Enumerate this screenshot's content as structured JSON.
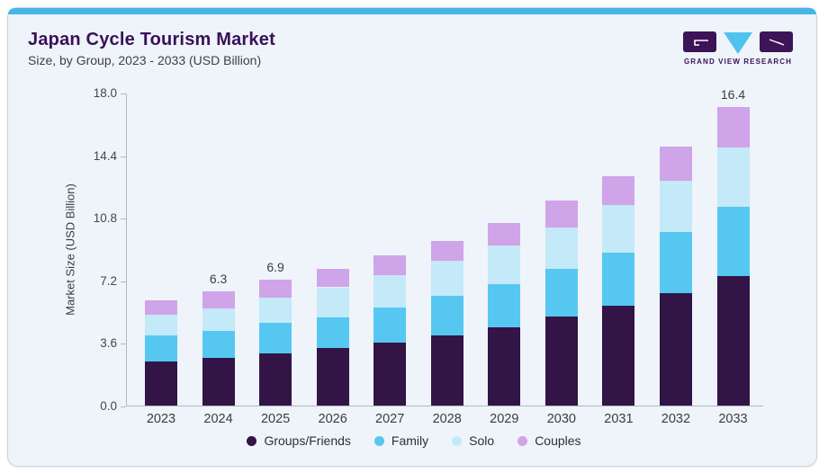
{
  "header": {
    "title": "Japan Cycle Tourism Market",
    "subtitle": "Size, by Group, 2023 - 2033 (USD Billion)"
  },
  "logo": {
    "text": "GRAND VIEW RESEARCH",
    "letters": [
      "G",
      "V",
      "R"
    ],
    "colors": {
      "block": "#3d1458",
      "triangle": "#4fc2ef",
      "text": "#3a1158"
    }
  },
  "colors": {
    "card_background": "#eef4f9",
    "card_border": "#c9d4dd",
    "top_accent": "#45b5e8",
    "title_text": "#3a1059",
    "axis_line": "#b0b9c1"
  },
  "chart_data": {
    "type": "bar",
    "stacked": true,
    "title": "Japan Cycle Tourism Market Size, by Group, 2023 - 2033 (USD Billion)",
    "categories": [
      "2023",
      "2024",
      "2025",
      "2026",
      "2027",
      "2028",
      "2029",
      "2030",
      "2031",
      "2032",
      "2033"
    ],
    "series": [
      {
        "name": "Groups/Friends",
        "color": "#321447",
        "values": [
          2.4,
          2.6,
          2.85,
          3.15,
          3.45,
          3.85,
          4.3,
          4.9,
          5.5,
          6.2,
          7.1
        ]
      },
      {
        "name": "Family",
        "color": "#56c7f1",
        "values": [
          1.45,
          1.5,
          1.7,
          1.7,
          1.95,
          2.2,
          2.35,
          2.6,
          2.9,
          3.35,
          3.8
        ]
      },
      {
        "name": "Solo",
        "color": "#c4e9f8",
        "values": [
          1.15,
          1.25,
          1.4,
          1.65,
          1.75,
          1.9,
          2.15,
          2.3,
          2.6,
          2.8,
          3.3
        ]
      },
      {
        "name": "Couples",
        "color": "#cfa4e8",
        "values": [
          0.8,
          0.95,
          0.95,
          1.0,
          1.1,
          1.1,
          1.25,
          1.45,
          1.6,
          1.9,
          2.2
        ]
      }
    ],
    "bar_labels": [
      "",
      "6.3",
      "6.9",
      "",
      "",
      "",
      "",
      "",
      "",
      "",
      "16.4"
    ],
    "xlabel": "",
    "ylabel": "Market Size (USD Billion)",
    "yticks": [
      "0.0",
      "3.6",
      "7.2",
      "10.8",
      "14.4",
      "18.0"
    ],
    "ylim": [
      0,
      18
    ],
    "grid": false,
    "legend_position": "bottom"
  }
}
